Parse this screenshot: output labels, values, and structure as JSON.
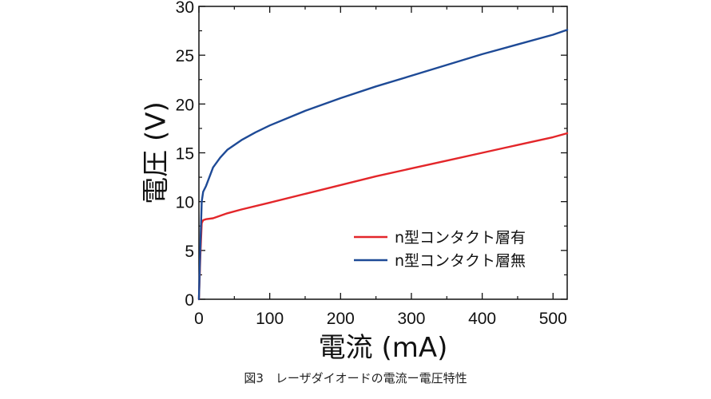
{
  "caption": "図3　レーザダイオードの電流ー電圧特性",
  "chart_data": {
    "type": "line",
    "xlabel": "電流 (mA)",
    "ylabel": "電圧 (V)",
    "xlim": [
      0,
      520
    ],
    "ylim": [
      0,
      30
    ],
    "xticks": [
      0,
      100,
      200,
      300,
      400,
      500
    ],
    "yticks": [
      0,
      5,
      10,
      15,
      20,
      25,
      30
    ],
    "grid": false,
    "legend_position": "bottom-right",
    "series": [
      {
        "name": "n型コンタクト層有",
        "color": "#e3262a",
        "x": [
          0,
          2,
          4,
          6,
          10,
          20,
          40,
          60,
          100,
          150,
          200,
          250,
          300,
          350,
          400,
          450,
          500,
          520
        ],
        "y": [
          0,
          4.5,
          7.8,
          8.1,
          8.2,
          8.3,
          8.8,
          9.2,
          9.9,
          10.8,
          11.7,
          12.6,
          13.4,
          14.2,
          15.0,
          15.8,
          16.6,
          17.0
        ]
      },
      {
        "name": "n型コンタクト層無",
        "color": "#1e4a96",
        "x": [
          0,
          2,
          4,
          6,
          10,
          20,
          30,
          40,
          60,
          80,
          100,
          150,
          200,
          250,
          300,
          350,
          400,
          450,
          500,
          520
        ],
        "y": [
          0,
          5.5,
          10.0,
          11.0,
          11.6,
          13.5,
          14.5,
          15.3,
          16.3,
          17.1,
          17.8,
          19.3,
          20.6,
          21.8,
          22.9,
          24.0,
          25.1,
          26.1,
          27.1,
          27.6
        ]
      }
    ]
  }
}
